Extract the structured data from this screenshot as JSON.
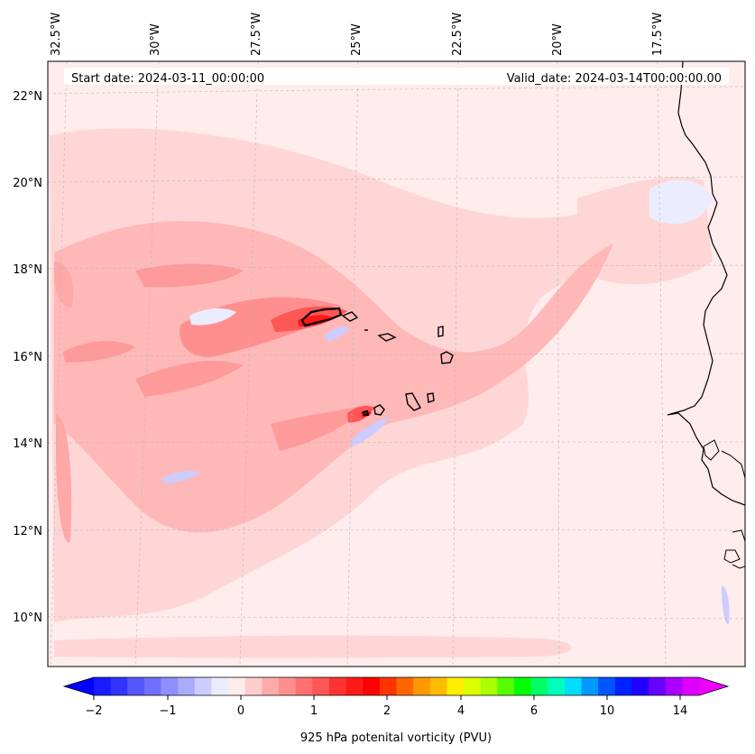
{
  "header": {
    "start_date": "Start date: 2024-03-11_00:00:00",
    "valid_date": "Valid_date: 2024-03-14T00:00:00.00"
  },
  "longitude_labels": [
    "32.5°W",
    "30°W",
    "27.5°W",
    "25°W",
    "22.5°W",
    "20°W",
    "17.5°W"
  ],
  "latitude_labels": [
    "22°N",
    "20°N",
    "18°N",
    "16°N",
    "14°N",
    "12°N",
    "10°N"
  ],
  "colorbar": {
    "label": "925 hPa potenital vorticity (PVU)",
    "tick_labels": [
      "−2",
      "−1",
      "0",
      "1",
      "2",
      "4",
      "6",
      "10",
      "14"
    ],
    "colors": [
      "#1a1aff",
      "#3333ff",
      "#5656ff",
      "#7070ff",
      "#8f8fff",
      "#aaaaff",
      "#ccccff",
      "#ececff",
      "#ffecec",
      "#ffcccc",
      "#ffaaaa",
      "#ff8f8f",
      "#ff7070",
      "#ff5656",
      "#ff3333",
      "#ff1a1a",
      "#ff0000",
      "#ff3300",
      "#ff6600",
      "#ff9900",
      "#ffbb00",
      "#ffee00",
      "#ddff00",
      "#aaff00",
      "#55ff00",
      "#00ff00",
      "#00ff66",
      "#00ffbb",
      "#00ddff",
      "#0099ff",
      "#0055ff",
      "#0022ff",
      "#2200ff",
      "#6600ff",
      "#aa00ff",
      "#dd00ff"
    ]
  }
}
